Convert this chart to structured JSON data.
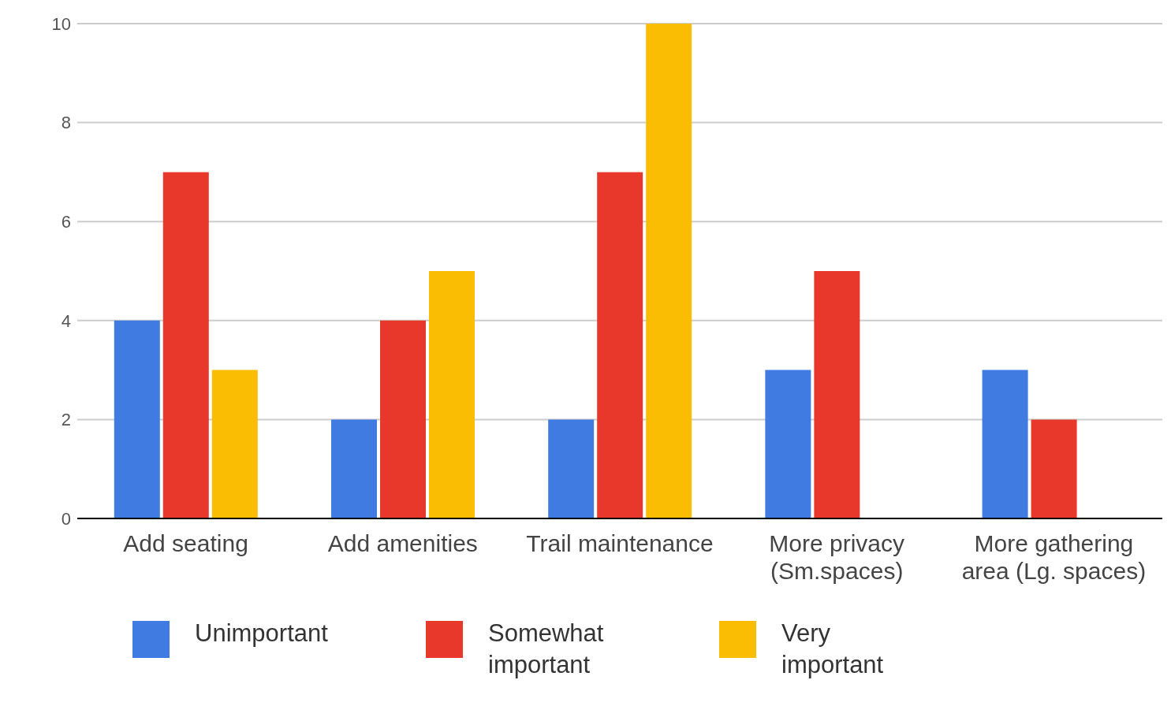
{
  "chart_data": {
    "type": "bar",
    "categories": [
      "Add seating",
      "Add amenities",
      "Trail maintenance",
      "More privacy (Sm.spaces)",
      "More gathering area (Lg. spaces)"
    ],
    "series": [
      {
        "name": "Unimportant",
        "color": "#3f7be0",
        "values": [
          4,
          2,
          2,
          3,
          3
        ]
      },
      {
        "name": "Somewhat important",
        "color": "#e8382c",
        "values": [
          7,
          4,
          7,
          5,
          2
        ]
      },
      {
        "name": "Very important",
        "color": "#fbbc04",
        "values": [
          3,
          5,
          10,
          0,
          0
        ]
      }
    ],
    "ylim": [
      0,
      10
    ],
    "yticks": [
      0,
      2,
      4,
      6,
      8,
      10
    ],
    "grid": "y",
    "legend": "bottom"
  }
}
